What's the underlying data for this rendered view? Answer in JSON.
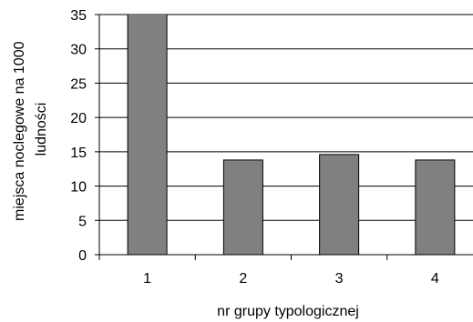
{
  "chart_data": {
    "type": "bar",
    "title": "",
    "xlabel": "nr grupy typologicznej",
    "ylabel_lines": [
      "miejsca noclegowe na 1000",
      "ludności"
    ],
    "categories": [
      "1",
      "2",
      "3",
      "4"
    ],
    "values": [
      35.8,
      13.8,
      14.6,
      13.8
    ],
    "ylim": [
      0,
      35
    ],
    "yticks": [
      "0",
      "5",
      "10",
      "15",
      "20",
      "25",
      "30",
      "35"
    ],
    "grid": true,
    "legend": "none",
    "bar_color": "#808080",
    "bar_border_color": "#000000",
    "grid_color": "#000000"
  }
}
